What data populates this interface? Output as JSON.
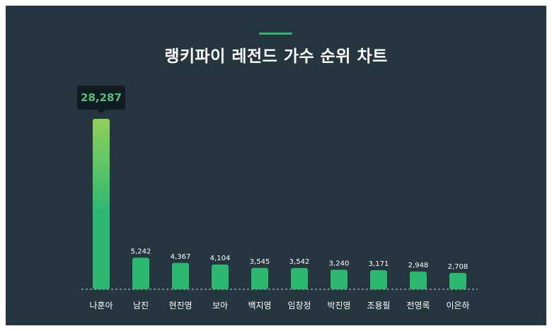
{
  "title": "랭키파이 레전드 가수 순위 차트",
  "colors": {
    "background": "#263640",
    "accent": "#2db872",
    "bar": "#2db872",
    "bar_top_highlight": "#8fd05a",
    "text": "#ffffff",
    "tooltip_bg": "#121b21",
    "tooltip_text": "#4ec27c"
  },
  "tooltip": {
    "value": "28,287"
  },
  "chart_data": {
    "type": "bar",
    "title": "랭키파이 레전드 가수 순위 차트",
    "categories": [
      "나훈아",
      "남진",
      "현진영",
      "보아",
      "백지영",
      "임창정",
      "박진영",
      "조용필",
      "전영록",
      "이은하"
    ],
    "values": [
      28287,
      5242,
      4367,
      4104,
      3545,
      3542,
      3240,
      3171,
      2948,
      2708
    ],
    "value_labels": [
      "",
      "5,242",
      "4,367",
      "4,104",
      "3,545",
      "3,542",
      "3,240",
      "3,171",
      "2,948",
      "2,708"
    ],
    "xlabel": "",
    "ylabel": "",
    "ylim": [
      0,
      28287
    ],
    "grid": false,
    "legend": "none"
  }
}
